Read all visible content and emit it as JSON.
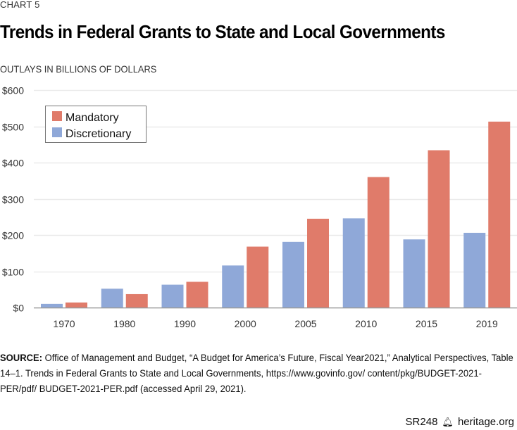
{
  "header": {
    "kicker": "CHART 5",
    "title": "Trends in Federal Grants to State and Local Governments",
    "units": "OUTLAYS IN BILLIONS OF DOLLARS"
  },
  "colors": {
    "mandatory": "#E07B6A",
    "discretionary": "#8FA8D8",
    "grid": "#EBEBEB",
    "axis": "#9A9A9A"
  },
  "chart_data": {
    "type": "bar",
    "title": "Trends in Federal Grants to State and Local Governments",
    "xlabel": "",
    "ylabel": "OUTLAYS IN BILLIONS OF DOLLARS",
    "categories": [
      "1970",
      "1980",
      "1990",
      "2000",
      "2005",
      "2010",
      "2015",
      "2019"
    ],
    "series": [
      {
        "name": "Discretionary",
        "values": [
          10,
          52,
          63,
          116,
          181,
          246,
          188,
          206
        ]
      },
      {
        "name": "Mandatory",
        "values": [
          14,
          37,
          71,
          168,
          245,
          360,
          434,
          513
        ]
      }
    ],
    "ylim": [
      0,
      600
    ],
    "yticks": [
      0,
      100,
      200,
      300,
      400,
      500,
      600
    ],
    "ytick_labels": [
      "$0",
      "$100",
      "$200",
      "$300",
      "$400",
      "$500",
      "$600"
    ],
    "grid": true,
    "legend": {
      "placement": "top-left",
      "entries": [
        "Mandatory",
        "Discretionary"
      ]
    }
  },
  "source": {
    "label": "SOURCE:",
    "text": " Office of Management and Budget, “A Budget for America’s Future, Fiscal Year2021,” Analytical Perspectives, Table 14–1. Trends in Federal Grants to State and Local Governments, https://www.govinfo.gov/ content/pkg/BUDGET-2021-PER/pdf/ BUDGET-2021-PER.pdf (accessed April 29, 2021)."
  },
  "footer": {
    "report_id": "SR248",
    "logo_icon": "liberty-bell-icon",
    "site": "heritage.org"
  }
}
